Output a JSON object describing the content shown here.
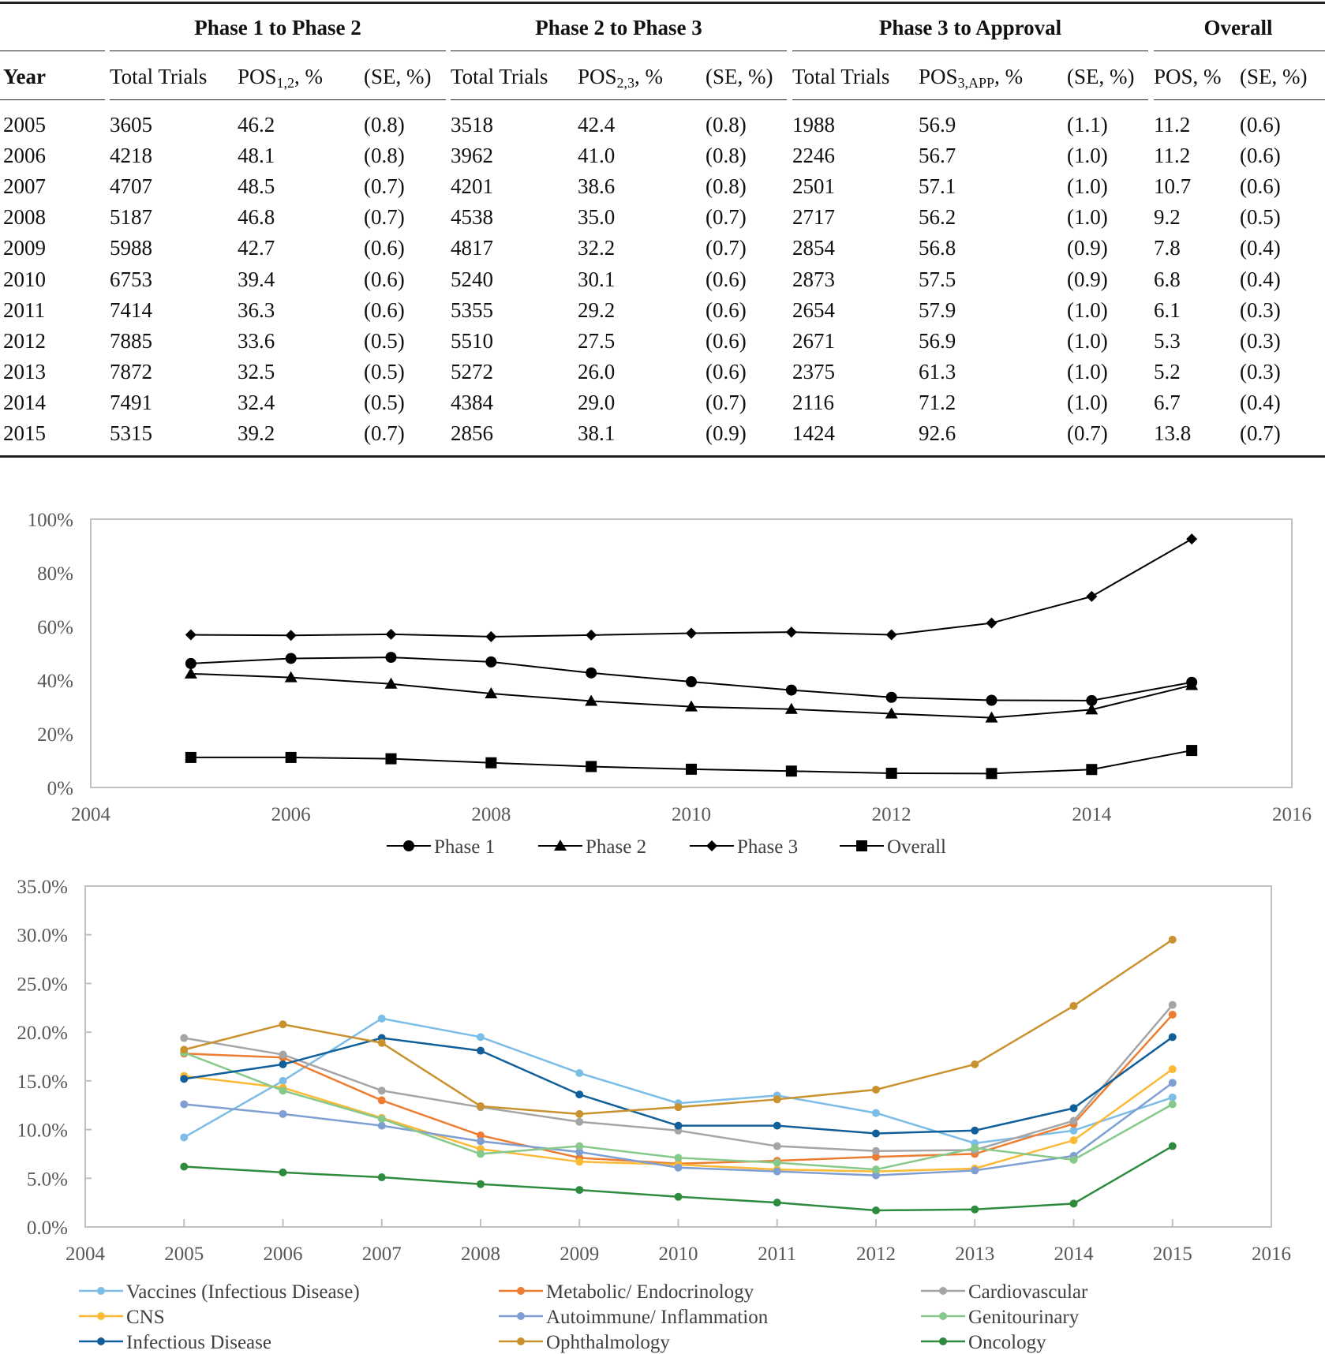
{
  "table": {
    "groups": [
      "Phase 1 to Phase 2",
      "Phase 2 to Phase 3",
      "Phase 3 to Approval",
      "Overall"
    ],
    "headers": [
      {
        "base": "Year"
      },
      {
        "base": "Total Trials"
      },
      {
        "base": "POS",
        "sub": "1,2",
        "suffix": ", %"
      },
      {
        "base": "(SE, %)"
      },
      {
        "base": "Total Trials"
      },
      {
        "base": "POS",
        "sub": "2,3",
        "suffix": ", %"
      },
      {
        "base": "(SE, %)"
      },
      {
        "base": "Total Trials"
      },
      {
        "base": "POS",
        "sub": "3,APP",
        "suffix": ", %"
      },
      {
        "base": "(SE, %)"
      },
      {
        "base": "POS, %"
      },
      {
        "base": "(SE, %)"
      }
    ],
    "rows": [
      [
        "2005",
        "3605",
        "46.2",
        "(0.8)",
        "3518",
        "42.4",
        "(0.8)",
        "1988",
        "56.9",
        "(1.1)",
        "11.2",
        "(0.6)"
      ],
      [
        "2006",
        "4218",
        "48.1",
        "(0.8)",
        "3962",
        "41.0",
        "(0.8)",
        "2246",
        "56.7",
        "(1.0)",
        "11.2",
        "(0.6)"
      ],
      [
        "2007",
        "4707",
        "48.5",
        "(0.7)",
        "4201",
        "38.6",
        "(0.8)",
        "2501",
        "57.1",
        "(1.0)",
        "10.7",
        "(0.6)"
      ],
      [
        "2008",
        "5187",
        "46.8",
        "(0.7)",
        "4538",
        "35.0",
        "(0.7)",
        "2717",
        "56.2",
        "(1.0)",
        "9.2",
        "(0.5)"
      ],
      [
        "2009",
        "5988",
        "42.7",
        "(0.6)",
        "4817",
        "32.2",
        "(0.7)",
        "2854",
        "56.8",
        "(0.9)",
        "7.8",
        "(0.4)"
      ],
      [
        "2010",
        "6753",
        "39.4",
        "(0.6)",
        "5240",
        "30.1",
        "(0.6)",
        "2873",
        "57.5",
        "(0.9)",
        "6.8",
        "(0.4)"
      ],
      [
        "2011",
        "7414",
        "36.3",
        "(0.6)",
        "5355",
        "29.2",
        "(0.6)",
        "2654",
        "57.9",
        "(1.0)",
        "6.1",
        "(0.3)"
      ],
      [
        "2012",
        "7885",
        "33.6",
        "(0.5)",
        "5510",
        "27.5",
        "(0.6)",
        "2671",
        "56.9",
        "(1.0)",
        "5.3",
        "(0.3)"
      ],
      [
        "2013",
        "7872",
        "32.5",
        "(0.5)",
        "5272",
        "26.0",
        "(0.6)",
        "2375",
        "61.3",
        "(1.0)",
        "5.2",
        "(0.3)"
      ],
      [
        "2014",
        "7491",
        "32.4",
        "(0.5)",
        "4384",
        "29.0",
        "(0.7)",
        "2116",
        "71.2",
        "(1.0)",
        "6.7",
        "(0.4)"
      ],
      [
        "2015",
        "5315",
        "39.2",
        "(0.7)",
        "2856",
        "38.1",
        "(0.9)",
        "1424",
        "92.6",
        "(0.7)",
        "13.8",
        "(0.7)"
      ]
    ]
  },
  "chart_data": [
    {
      "type": "line",
      "title": "",
      "xlabel": "",
      "ylabel": "",
      "x": [
        2005,
        2006,
        2007,
        2008,
        2009,
        2010,
        2011,
        2012,
        2013,
        2014,
        2015
      ],
      "xlim": [
        2004,
        2016
      ],
      "xticks": [
        "2004",
        "2006",
        "2008",
        "2010",
        "2012",
        "2014",
        "2016"
      ],
      "ylim": [
        0,
        100
      ],
      "yticks": [
        "0%",
        "20%",
        "40%",
        "60%",
        "80%",
        "100%"
      ],
      "legend_position": "bottom",
      "series": [
        {
          "name": "Phase 1",
          "marker": "circle",
          "color": "#000000",
          "values": [
            46.2,
            48.1,
            48.5,
            46.8,
            42.7,
            39.4,
            36.3,
            33.6,
            32.5,
            32.4,
            39.2
          ]
        },
        {
          "name": "Phase 2",
          "marker": "triangle",
          "color": "#000000",
          "values": [
            42.4,
            41.0,
            38.6,
            35.0,
            32.2,
            30.1,
            29.2,
            27.5,
            26.0,
            29.0,
            38.1
          ]
        },
        {
          "name": "Phase 3",
          "marker": "diamond",
          "color": "#000000",
          "values": [
            56.9,
            56.7,
            57.1,
            56.2,
            56.8,
            57.5,
            57.9,
            56.9,
            61.3,
            71.2,
            92.6
          ]
        },
        {
          "name": "Overall",
          "marker": "square",
          "color": "#000000",
          "values": [
            11.2,
            11.2,
            10.7,
            9.2,
            7.8,
            6.8,
            6.1,
            5.3,
            5.2,
            6.7,
            13.8
          ]
        }
      ]
    },
    {
      "type": "line",
      "title": "",
      "xlabel": "",
      "ylabel": "",
      "x": [
        2005,
        2006,
        2007,
        2008,
        2009,
        2010,
        2011,
        2012,
        2013,
        2014,
        2015
      ],
      "xlim": [
        2004,
        2016
      ],
      "xticks": [
        "2004",
        "2005",
        "2006",
        "2007",
        "2008",
        "2009",
        "2010",
        "2011",
        "2012",
        "2013",
        "2014",
        "2015",
        "2016"
      ],
      "ylim": [
        0,
        35
      ],
      "yticks": [
        "0.0%",
        "5.0%",
        "10.0%",
        "15.0%",
        "20.0%",
        "25.0%",
        "30.0%",
        "35.0%"
      ],
      "legend_position": "bottom",
      "series": [
        {
          "name": "Vaccines (Infectious Disease)",
          "color": "#7bbde6",
          "values": [
            9.2,
            15.0,
            21.4,
            19.5,
            15.8,
            12.7,
            13.5,
            11.7,
            8.6,
            9.9,
            13.3
          ]
        },
        {
          "name": "Metabolic/ Endocrinology",
          "color": "#ed7d31",
          "values": [
            17.8,
            17.4,
            13.0,
            9.4,
            7.1,
            6.5,
            6.8,
            7.2,
            7.5,
            10.6,
            21.8
          ]
        },
        {
          "name": "Cardiovascular",
          "color": "#a5a5a5",
          "values": [
            19.4,
            17.7,
            14.0,
            12.3,
            10.8,
            9.9,
            8.3,
            7.8,
            7.9,
            10.9,
            22.8
          ]
        },
        {
          "name": "CNS",
          "color": "#fbb935",
          "values": [
            15.5,
            14.3,
            11.2,
            8.0,
            6.7,
            6.4,
            5.9,
            5.7,
            6.0,
            8.9,
            16.2
          ]
        },
        {
          "name": "Autoimmune/ Inflammation",
          "color": "#7f9fd3",
          "values": [
            12.6,
            11.6,
            10.4,
            8.8,
            7.7,
            6.1,
            5.7,
            5.3,
            5.8,
            7.3,
            14.8
          ]
        },
        {
          "name": "Genitourinary",
          "color": "#86c98a",
          "values": [
            17.9,
            14.0,
            11.1,
            7.5,
            8.3,
            7.1,
            6.6,
            5.9,
            8.1,
            6.9,
            12.6
          ]
        },
        {
          "name": "Infectious Disease",
          "color": "#115f9a",
          "values": [
            15.2,
            16.7,
            19.4,
            18.1,
            13.6,
            10.4,
            10.4,
            9.6,
            9.9,
            12.2,
            19.5
          ]
        },
        {
          "name": "Ophthalmology",
          "color": "#c9922f",
          "values": [
            18.2,
            20.8,
            18.9,
            12.4,
            11.6,
            12.3,
            13.1,
            14.1,
            16.7,
            22.7,
            29.5
          ]
        },
        {
          "name": "Oncology",
          "color": "#2e8b3e",
          "values": [
            6.2,
            5.6,
            5.1,
            4.4,
            3.8,
            3.1,
            2.5,
            1.7,
            1.8,
            2.4,
            8.3
          ]
        }
      ]
    }
  ]
}
